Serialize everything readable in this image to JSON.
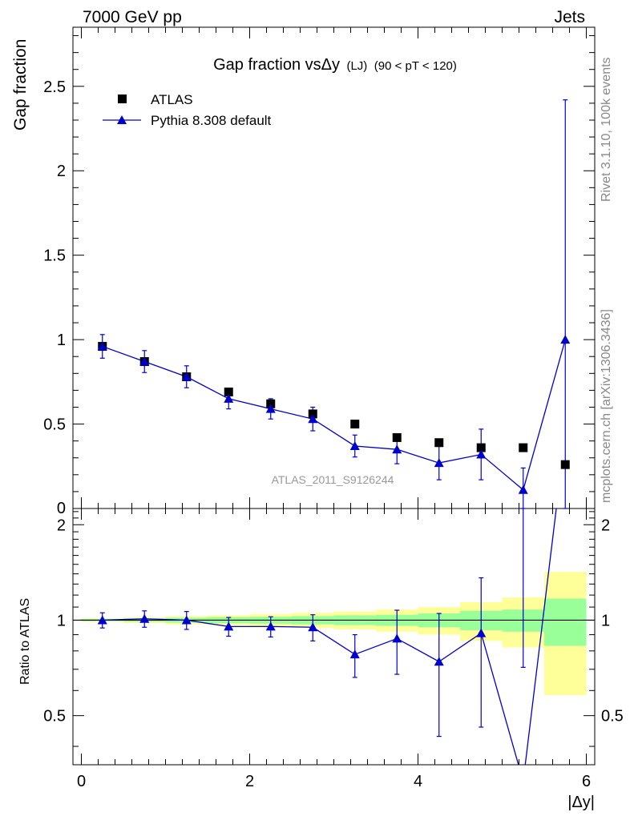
{
  "header": {
    "energy_label": "7000 GeV pp",
    "category_label": "Jets"
  },
  "side_labels": {
    "rivet": "Rivet 3.1.10,  100k events",
    "mcplots": "mcplots.cern.ch [arXiv:1306.3436]"
  },
  "watermark": "ATLAS_2011_S9126244",
  "colors": {
    "mc": "#0000cc",
    "data": "#000000",
    "band_inner": "#99ff99",
    "band_outer": "#ffff99"
  },
  "chart_data": [
    {
      "type": "scatter",
      "title": "Gap fraction vsΔy",
      "title_suffix": "(LJ)",
      "title_cut": "(90 < pT < 120)",
      "ylabel": "Gap fraction",
      "xlim": [
        -0.1,
        6.1
      ],
      "ylim": [
        0,
        2.85
      ],
      "yticks": [
        {
          "v": 0.5,
          "label": "0.5"
        },
        {
          "v": 1,
          "label": "1"
        },
        {
          "v": 1.5,
          "label": "1.5"
        },
        {
          "v": 2,
          "label": "2"
        },
        {
          "v": 2.5,
          "label": "2.5"
        }
      ],
      "y_zero_label": "0",
      "legend": {
        "placement": "top-left",
        "entries": [
          "ATLAS",
          "Pythia 8.308 default"
        ]
      },
      "x": [
        0.25,
        0.75,
        1.25,
        1.75,
        2.25,
        2.75,
        3.25,
        3.75,
        4.25,
        4.75,
        5.25,
        5.75
      ],
      "series": [
        {
          "name": "ATLAS",
          "marker": "square",
          "values": [
            0.96,
            0.87,
            0.78,
            0.69,
            0.62,
            0.56,
            0.5,
            0.42,
            0.39,
            0.36,
            0.36,
            0.26
          ]
        },
        {
          "name": "Pythia 8.308 default",
          "marker": "triangle",
          "values": [
            0.96,
            0.87,
            0.78,
            0.65,
            0.59,
            0.53,
            0.37,
            0.35,
            0.27,
            0.32,
            0.11,
            1.0
          ],
          "err": [
            0.07,
            0.065,
            0.065,
            0.06,
            0.06,
            0.07,
            0.065,
            0.085,
            0.1,
            0.15,
            0.13,
            1.42
          ]
        }
      ]
    },
    {
      "type": "line",
      "ylabel": "Ratio to ATLAS",
      "xlabel": "|Δy|",
      "xlim": [
        -0.1,
        6.1
      ],
      "ylim": [
        0.35,
        2.25
      ],
      "yticks": [
        {
          "v": 0.5,
          "label": "0.5"
        },
        {
          "v": 1,
          "label": "1"
        },
        {
          "v": 2,
          "label": "2"
        }
      ],
      "xticks": [
        {
          "v": 0,
          "label": "0"
        },
        {
          "v": 2,
          "label": "2"
        },
        {
          "v": 4,
          "label": "4"
        },
        {
          "v": 6,
          "label": "6"
        }
      ],
      "bin_edges": [
        0,
        0.5,
        1,
        1.5,
        2,
        2.5,
        3,
        3.5,
        4,
        4.5,
        5,
        5.5,
        6
      ],
      "band_inner": [
        0.008,
        0.012,
        0.018,
        0.022,
        0.025,
        0.03,
        0.035,
        0.04,
        0.05,
        0.07,
        0.08,
        0.17
      ],
      "band_outer": [
        0.012,
        0.02,
        0.03,
        0.036,
        0.045,
        0.055,
        0.065,
        0.08,
        0.1,
        0.14,
        0.18,
        0.42
      ],
      "series": [
        {
          "name": "Pythia 8.308 default",
          "x": [
            0.25,
            0.75,
            1.25,
            1.75,
            2.25,
            2.75,
            3.25,
            3.75,
            4.25,
            4.75,
            5.25,
            5.75
          ],
          "values": [
            1.0,
            1.01,
            1.0,
            0.955,
            0.955,
            0.95,
            0.78,
            0.875,
            0.74,
            0.91,
            0.31,
            3.85
          ],
          "err": [
            0.055,
            0.06,
            0.065,
            0.065,
            0.07,
            0.09,
            0.12,
            0.2,
            0.31,
            0.45,
            0.4,
            0
          ]
        }
      ]
    }
  ]
}
